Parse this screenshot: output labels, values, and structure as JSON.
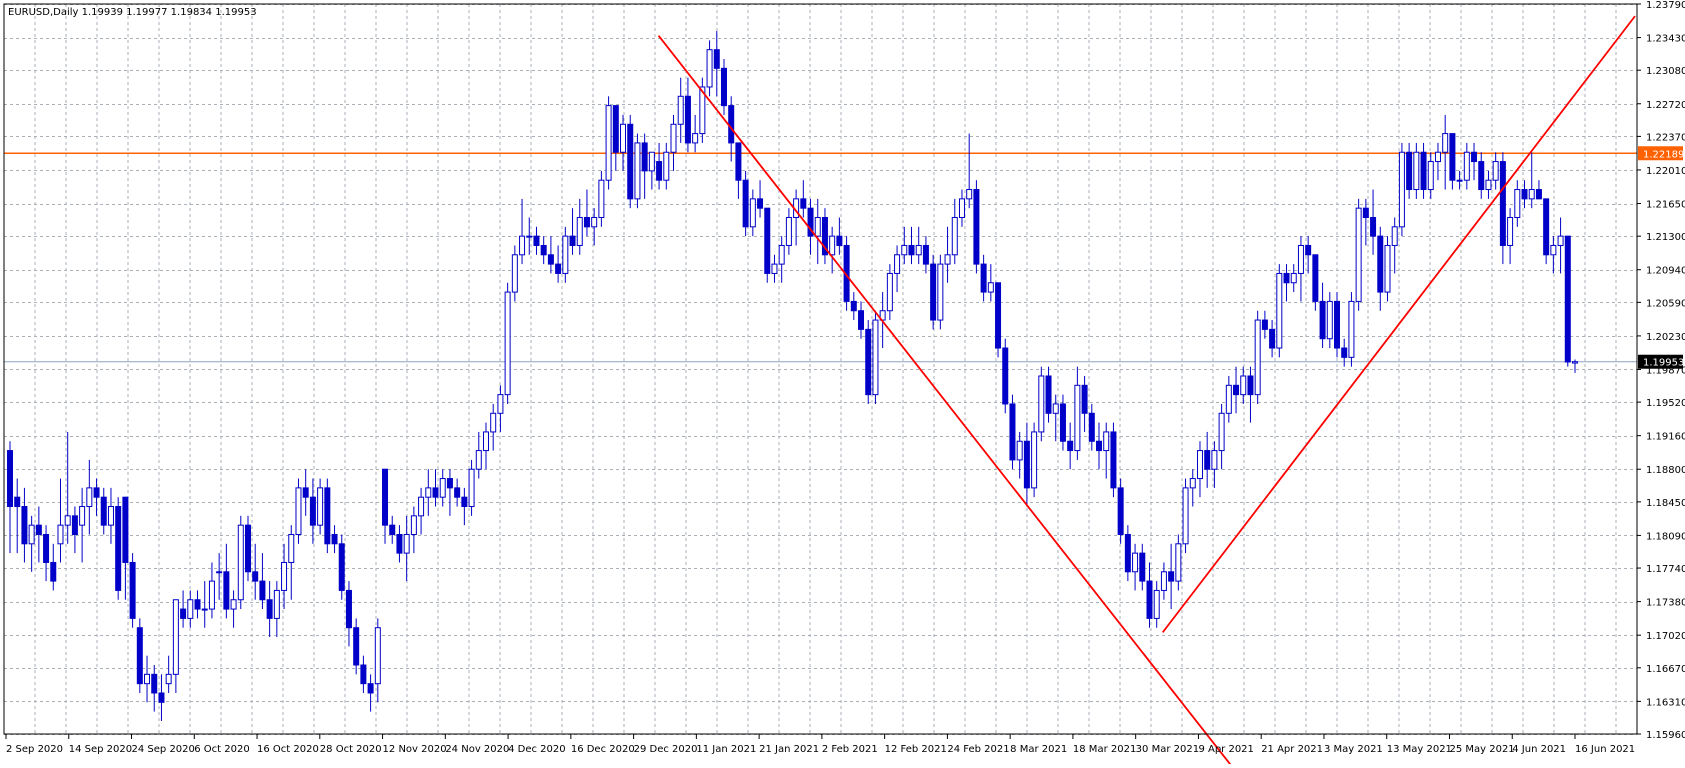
{
  "chart_data": {
    "type": "candlestick",
    "title": "EURUSD,Daily  1.19939 1.19977 1.19834 1.19953",
    "symbol": "EURUSD",
    "timeframe": "Daily",
    "ohlc_last": [
      "1.19939",
      "1.19977",
      "1.19834",
      "1.19953"
    ],
    "y_ticks": [
      "1.23790",
      "1.23430",
      "1.23080",
      "1.22720",
      "1.22370",
      "1.22010",
      "1.21650",
      "1.21300",
      "1.20940",
      "1.20590",
      "1.20230",
      "1.19870",
      "1.19520",
      "1.19160",
      "1.18800",
      "1.18450",
      "1.18090",
      "1.17740",
      "1.17380",
      "1.17020",
      "1.16670",
      "1.16310",
      "1.15960"
    ],
    "ylim": [
      1.1596,
      1.2379
    ],
    "x_ticks": [
      "2 Sep 2020",
      "14 Sep 2020",
      "24 Sep 2020",
      "6 Oct 2020",
      "16 Oct 2020",
      "28 Oct 2020",
      "12 Nov 2020",
      "24 Nov 2020",
      "4 Dec 2020",
      "16 Dec 2020",
      "29 Dec 2020",
      "11 Jan 2021",
      "21 Jan 2021",
      "2 Feb 2021",
      "12 Feb 2021",
      "24 Feb 2021",
      "8 Mar 2021",
      "18 Mar 2021",
      "30 Mar 2021",
      "9 Apr 2021",
      "21 Apr 2021",
      "3 May 2021",
      "13 May 2021",
      "25 May 2021",
      "4 Jun 2021",
      "16 Jun 2021"
    ],
    "grid": true,
    "colors": {
      "candle_bull": "#0000c8",
      "candle_bear": "#0000c8",
      "grid": "#aab0b8",
      "trendline": "#ff0000",
      "hline": "#ff6000",
      "price_line": "#8fa3c4",
      "price_label_bg": "#000000",
      "hline_label_bg": "#ff6000"
    },
    "horizontal_line": {
      "price": 1.22189,
      "label": "1.22189"
    },
    "current_price": {
      "price": 1.19953,
      "label": "1.19953"
    },
    "trendlines": [
      {
        "from": [
          "29 Dec 2020",
          1.2345
        ],
        "to": [
          "13 Apr 2021",
          1.1555
        ]
      },
      {
        "from": [
          "30 Mar 2021",
          1.1705
        ],
        "to": [
          "18 Jun 2021",
          1.2366
        ]
      }
    ],
    "candles": [
      [
        1.19,
        1.191,
        1.179,
        1.184
      ],
      [
        1.185,
        1.187,
        1.179,
        1.184
      ],
      [
        1.184,
        1.186,
        1.178,
        1.18
      ],
      [
        1.18,
        1.183,
        1.177,
        1.182
      ],
      [
        1.182,
        1.184,
        1.178,
        1.181
      ],
      [
        1.181,
        1.182,
        1.176,
        1.178
      ],
      [
        1.178,
        1.18,
        1.175,
        1.176
      ],
      [
        1.18,
        1.187,
        1.178,
        1.182
      ],
      [
        1.182,
        1.192,
        1.18,
        1.183
      ],
      [
        1.183,
        1.184,
        1.179,
        1.181
      ],
      [
        1.182,
        1.186,
        1.178,
        1.184
      ],
      [
        1.184,
        1.189,
        1.181,
        1.186
      ],
      [
        1.186,
        1.187,
        1.183,
        1.185
      ],
      [
        1.185,
        1.186,
        1.181,
        1.182
      ],
      [
        1.182,
        1.186,
        1.18,
        1.184
      ],
      [
        1.184,
        1.185,
        1.174,
        1.175
      ],
      [
        1.185,
        1.185,
        1.174,
        1.178
      ],
      [
        1.178,
        1.179,
        1.171,
        1.172
      ],
      [
        1.171,
        1.172,
        1.164,
        1.165
      ],
      [
        1.165,
        1.168,
        1.163,
        1.166
      ],
      [
        1.166,
        1.167,
        1.162,
        1.164
      ],
      [
        1.164,
        1.166,
        1.161,
        1.163
      ],
      [
        1.165,
        1.168,
        1.164,
        1.166
      ],
      [
        1.166,
        1.174,
        1.164,
        1.174
      ],
      [
        1.173,
        1.175,
        1.171,
        1.172
      ],
      [
        1.172,
        1.175,
        1.171,
        1.174
      ],
      [
        1.174,
        1.175,
        1.172,
        1.173
      ],
      [
        1.173,
        1.176,
        1.171,
        1.173
      ],
      [
        1.173,
        1.178,
        1.172,
        1.176
      ],
      [
        1.177,
        1.179,
        1.174,
        1.177
      ],
      [
        1.177,
        1.18,
        1.172,
        1.173
      ],
      [
        1.173,
        1.175,
        1.171,
        1.174
      ],
      [
        1.174,
        1.183,
        1.173,
        1.182
      ],
      [
        1.182,
        1.183,
        1.176,
        1.177
      ],
      [
        1.177,
        1.18,
        1.174,
        1.176
      ],
      [
        1.176,
        1.179,
        1.173,
        1.174
      ],
      [
        1.174,
        1.176,
        1.17,
        1.172
      ],
      [
        1.172,
        1.176,
        1.17,
        1.175
      ],
      [
        1.175,
        1.18,
        1.173,
        1.178
      ],
      [
        1.178,
        1.182,
        1.174,
        1.181
      ],
      [
        1.181,
        1.187,
        1.18,
        1.186
      ],
      [
        1.186,
        1.188,
        1.183,
        1.185
      ],
      [
        1.185,
        1.187,
        1.18,
        1.182
      ],
      [
        1.182,
        1.187,
        1.181,
        1.186
      ],
      [
        1.186,
        1.187,
        1.179,
        1.18
      ],
      [
        1.181,
        1.182,
        1.179,
        1.18
      ],
      [
        1.18,
        1.181,
        1.174,
        1.175
      ],
      [
        1.175,
        1.176,
        1.169,
        1.171
      ],
      [
        1.171,
        1.172,
        1.166,
        1.167
      ],
      [
        1.167,
        1.168,
        1.164,
        1.165
      ],
      [
        1.165,
        1.166,
        1.162,
        1.164
      ],
      [
        1.165,
        1.172,
        1.163,
        1.171
      ],
      [
        1.188,
        1.188,
        1.18,
        1.182
      ],
      [
        1.182,
        1.183,
        1.18,
        1.181
      ],
      [
        1.181,
        1.182,
        1.178,
        1.179
      ],
      [
        1.179,
        1.183,
        1.176,
        1.181
      ],
      [
        1.181,
        1.184,
        1.179,
        1.183
      ],
      [
        1.183,
        1.186,
        1.181,
        1.185
      ],
      [
        1.185,
        1.188,
        1.183,
        1.186
      ],
      [
        1.186,
        1.188,
        1.184,
        1.185
      ],
      [
        1.185,
        1.188,
        1.184,
        1.187
      ],
      [
        1.187,
        1.188,
        1.183,
        1.186
      ],
      [
        1.186,
        1.187,
        1.184,
        1.185
      ],
      [
        1.185,
        1.186,
        1.182,
        1.184
      ],
      [
        1.184,
        1.189,
        1.183,
        1.188
      ],
      [
        1.188,
        1.192,
        1.187,
        1.19
      ],
      [
        1.19,
        1.193,
        1.188,
        1.192
      ],
      [
        1.192,
        1.195,
        1.19,
        1.194
      ],
      [
        1.194,
        1.197,
        1.192,
        1.196
      ],
      [
        1.196,
        1.208,
        1.195,
        1.207
      ],
      [
        1.207,
        1.212,
        1.206,
        1.211
      ],
      [
        1.211,
        1.217,
        1.21,
        1.213
      ],
      [
        1.213,
        1.215,
        1.211,
        1.213
      ],
      [
        1.213,
        1.214,
        1.211,
        1.212
      ],
      [
        1.212,
        1.213,
        1.21,
        1.211
      ],
      [
        1.211,
        1.213,
        1.209,
        1.21
      ],
      [
        1.21,
        1.212,
        1.208,
        1.209
      ],
      [
        1.209,
        1.214,
        1.208,
        1.213
      ],
      [
        1.213,
        1.216,
        1.211,
        1.212
      ],
      [
        1.212,
        1.217,
        1.211,
        1.215
      ],
      [
        1.215,
        1.218,
        1.213,
        1.214
      ],
      [
        1.214,
        1.216,
        1.212,
        1.215
      ],
      [
        1.215,
        1.22,
        1.214,
        1.219
      ],
      [
        1.219,
        1.228,
        1.218,
        1.227
      ],
      [
        1.227,
        1.227,
        1.22,
        1.222
      ],
      [
        1.222,
        1.226,
        1.22,
        1.225
      ],
      [
        1.225,
        1.226,
        1.216,
        1.217
      ],
      [
        1.217,
        1.224,
        1.216,
        1.223
      ],
      [
        1.223,
        1.224,
        1.217,
        1.22
      ],
      [
        1.22,
        1.222,
        1.218,
        1.222
      ],
      [
        1.221,
        1.223,
        1.218,
        1.219
      ],
      [
        1.219,
        1.223,
        1.218,
        1.222
      ],
      [
        1.222,
        1.226,
        1.22,
        1.225
      ],
      [
        1.225,
        1.23,
        1.223,
        1.228
      ],
      [
        1.228,
        1.23,
        1.222,
        1.223
      ],
      [
        1.223,
        1.226,
        1.222,
        1.224
      ],
      [
        1.224,
        1.23,
        1.223,
        1.229
      ],
      [
        1.229,
        1.234,
        1.228,
        1.233
      ],
      [
        1.233,
        1.235,
        1.228,
        1.231
      ],
      [
        1.231,
        1.232,
        1.226,
        1.227
      ],
      [
        1.227,
        1.228,
        1.221,
        1.223
      ],
      [
        1.223,
        1.223,
        1.217,
        1.219
      ],
      [
        1.219,
        1.22,
        1.213,
        1.214
      ],
      [
        1.214,
        1.218,
        1.213,
        1.217
      ],
      [
        1.217,
        1.219,
        1.215,
        1.216
      ],
      [
        1.216,
        1.216,
        1.208,
        1.209
      ],
      [
        1.209,
        1.211,
        1.208,
        1.21
      ],
      [
        1.21,
        1.213,
        1.208,
        1.212
      ],
      [
        1.212,
        1.216,
        1.211,
        1.215
      ],
      [
        1.215,
        1.218,
        1.212,
        1.217
      ],
      [
        1.217,
        1.219,
        1.215,
        1.216
      ],
      [
        1.216,
        1.217,
        1.211,
        1.213
      ],
      [
        1.213,
        1.217,
        1.21,
        1.215
      ],
      [
        1.215,
        1.216,
        1.21,
        1.211
      ],
      [
        1.211,
        1.214,
        1.209,
        1.213
      ],
      [
        1.213,
        1.215,
        1.211,
        1.212
      ],
      [
        1.212,
        1.213,
        1.205,
        1.206
      ],
      [
        1.206,
        1.207,
        1.204,
        1.205
      ],
      [
        1.205,
        1.206,
        1.202,
        1.203
      ],
      [
        1.203,
        1.204,
        1.195,
        1.196
      ],
      [
        1.196,
        1.205,
        1.195,
        1.204
      ],
      [
        1.204,
        1.207,
        1.201,
        1.205
      ],
      [
        1.205,
        1.21,
        1.204,
        1.209
      ],
      [
        1.209,
        1.212,
        1.207,
        1.211
      ],
      [
        1.211,
        1.214,
        1.21,
        1.212
      ],
      [
        1.212,
        1.214,
        1.21,
        1.211
      ],
      [
        1.211,
        1.214,
        1.21,
        1.212
      ],
      [
        1.212,
        1.213,
        1.209,
        1.21
      ],
      [
        1.21,
        1.211,
        1.203,
        1.204
      ],
      [
        1.204,
        1.211,
        1.203,
        1.21
      ],
      [
        1.21,
        1.214,
        1.208,
        1.211
      ],
      [
        1.211,
        1.217,
        1.21,
        1.215
      ],
      [
        1.215,
        1.218,
        1.214,
        1.217
      ],
      [
        1.217,
        1.224,
        1.216,
        1.218
      ],
      [
        1.218,
        1.219,
        1.209,
        1.21
      ],
      [
        1.21,
        1.211,
        1.206,
        1.207
      ],
      [
        1.207,
        1.21,
        1.206,
        1.208
      ],
      [
        1.208,
        1.208,
        1.2,
        1.201
      ],
      [
        1.201,
        1.202,
        1.194,
        1.195
      ],
      [
        1.195,
        1.196,
        1.188,
        1.189
      ],
      [
        1.189,
        1.192,
        1.187,
        1.191
      ],
      [
        1.191,
        1.193,
        1.184,
        1.186
      ],
      [
        1.186,
        1.193,
        1.185,
        1.192
      ],
      [
        1.192,
        1.199,
        1.191,
        1.198
      ],
      [
        1.198,
        1.199,
        1.193,
        1.194
      ],
      [
        1.194,
        1.196,
        1.191,
        1.195
      ],
      [
        1.195,
        1.196,
        1.19,
        1.191
      ],
      [
        1.191,
        1.193,
        1.188,
        1.19
      ],
      [
        1.19,
        1.199,
        1.189,
        1.197
      ],
      [
        1.197,
        1.198,
        1.192,
        1.194
      ],
      [
        1.194,
        1.195,
        1.19,
        1.191
      ],
      [
        1.191,
        1.193,
        1.188,
        1.19
      ],
      [
        1.19,
        1.193,
        1.187,
        1.192
      ],
      [
        1.192,
        1.193,
        1.185,
        1.186
      ],
      [
        1.186,
        1.187,
        1.18,
        1.181
      ],
      [
        1.181,
        1.182,
        1.176,
        1.177
      ],
      [
        1.177,
        1.18,
        1.175,
        1.179
      ],
      [
        1.179,
        1.18,
        1.175,
        1.176
      ],
      [
        1.176,
        1.178,
        1.171,
        1.172
      ],
      [
        1.172,
        1.176,
        1.171,
        1.175
      ],
      [
        1.175,
        1.178,
        1.174,
        1.177
      ],
      [
        1.177,
        1.18,
        1.173,
        1.176
      ],
      [
        1.176,
        1.181,
        1.175,
        1.18
      ],
      [
        1.18,
        1.187,
        1.179,
        1.186
      ],
      [
        1.186,
        1.188,
        1.184,
        1.187
      ],
      [
        1.187,
        1.191,
        1.185,
        1.19
      ],
      [
        1.19,
        1.192,
        1.186,
        1.188
      ],
      [
        1.188,
        1.191,
        1.186,
        1.19
      ],
      [
        1.19,
        1.195,
        1.188,
        1.194
      ],
      [
        1.194,
        1.198,
        1.193,
        1.197
      ],
      [
        1.197,
        1.199,
        1.194,
        1.196
      ],
      [
        1.196,
        1.199,
        1.195,
        1.198
      ],
      [
        1.198,
        1.199,
        1.193,
        1.196
      ],
      [
        1.196,
        1.205,
        1.195,
        1.204
      ],
      [
        1.204,
        1.205,
        1.202,
        1.203
      ],
      [
        1.203,
        1.204,
        1.2,
        1.201
      ],
      [
        1.201,
        1.21,
        1.2,
        1.209
      ],
      [
        1.209,
        1.21,
        1.206,
        1.208
      ],
      [
        1.208,
        1.21,
        1.207,
        1.209
      ],
      [
        1.209,
        1.213,
        1.206,
        1.212
      ],
      [
        1.212,
        1.213,
        1.209,
        1.211
      ],
      [
        1.211,
        1.211,
        1.205,
        1.206
      ],
      [
        1.206,
        1.208,
        1.201,
        1.202
      ],
      [
        1.202,
        1.207,
        1.201,
        1.206
      ],
      [
        1.206,
        1.207,
        1.2,
        1.201
      ],
      [
        1.201,
        1.202,
        1.199,
        1.2
      ],
      [
        1.2,
        1.207,
        1.199,
        1.206
      ],
      [
        1.206,
        1.217,
        1.205,
        1.216
      ],
      [
        1.216,
        1.217,
        1.212,
        1.215
      ],
      [
        1.215,
        1.218,
        1.211,
        1.213
      ],
      [
        1.213,
        1.214,
        1.205,
        1.207
      ],
      [
        1.207,
        1.213,
        1.206,
        1.212
      ],
      [
        1.212,
        1.215,
        1.209,
        1.214
      ],
      [
        1.214,
        1.223,
        1.213,
        1.222
      ],
      [
        1.222,
        1.223,
        1.217,
        1.218
      ],
      [
        1.218,
        1.223,
        1.217,
        1.222
      ],
      [
        1.222,
        1.223,
        1.217,
        1.218
      ],
      [
        1.218,
        1.222,
        1.217,
        1.221
      ],
      [
        1.221,
        1.223,
        1.219,
        1.222
      ],
      [
        1.222,
        1.226,
        1.218,
        1.224
      ],
      [
        1.224,
        1.224,
        1.218,
        1.219
      ],
      [
        1.219,
        1.22,
        1.218,
        1.219
      ],
      [
        1.219,
        1.223,
        1.218,
        1.222
      ],
      [
        1.222,
        1.223,
        1.219,
        1.221
      ],
      [
        1.221,
        1.222,
        1.217,
        1.218
      ],
      [
        1.218,
        1.22,
        1.217,
        1.219
      ],
      [
        1.219,
        1.222,
        1.218,
        1.221
      ],
      [
        1.221,
        1.222,
        1.21,
        1.212
      ],
      [
        1.212,
        1.216,
        1.21,
        1.215
      ],
      [
        1.215,
        1.219,
        1.214,
        1.218
      ],
      [
        1.218,
        1.219,
        1.216,
        1.217
      ],
      [
        1.217,
        1.222,
        1.216,
        1.218
      ],
      [
        1.218,
        1.219,
        1.217,
        1.217
      ],
      [
        1.217,
        1.217,
        1.21,
        1.211
      ],
      [
        1.211,
        1.213,
        1.209,
        1.212
      ],
      [
        1.212,
        1.215,
        1.209,
        1.213
      ],
      [
        1.213,
        1.213,
        1.199,
        1.1995
      ],
      [
        1.19939,
        1.19977,
        1.19834,
        1.19953
      ]
    ]
  }
}
